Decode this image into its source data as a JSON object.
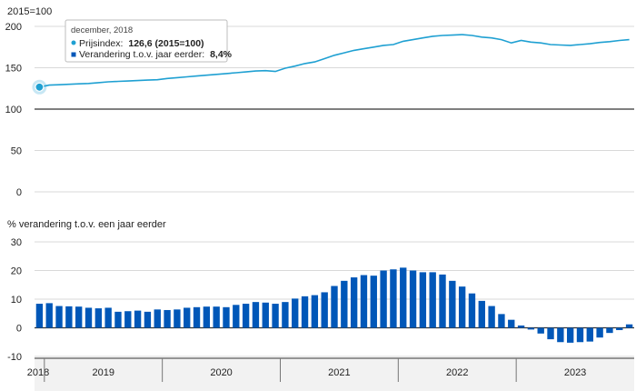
{
  "chart_data": [
    {
      "type": "line",
      "title": "2015=100",
      "yticks": [
        0,
        50,
        100,
        150,
        200
      ],
      "ylim": [
        0,
        200
      ],
      "baseline": 100,
      "grid": true,
      "series": [
        {
          "name": "Prijsindex",
          "color": "#1fa0d2",
          "x": [
            "2018-12",
            "2019-01",
            "2019-02",
            "2019-03",
            "2019-04",
            "2019-05",
            "2019-06",
            "2019-07",
            "2019-08",
            "2019-09",
            "2019-10",
            "2019-11",
            "2019-12",
            "2020-01",
            "2020-02",
            "2020-03",
            "2020-04",
            "2020-05",
            "2020-06",
            "2020-07",
            "2020-08",
            "2020-09",
            "2020-10",
            "2020-11",
            "2020-12",
            "2021-01",
            "2021-02",
            "2021-03",
            "2021-04",
            "2021-05",
            "2021-06",
            "2021-07",
            "2021-08",
            "2021-09",
            "2021-10",
            "2021-11",
            "2021-12",
            "2022-01",
            "2022-02",
            "2022-03",
            "2022-04",
            "2022-05",
            "2022-06",
            "2022-07",
            "2022-08",
            "2022-09",
            "2022-10",
            "2022-11",
            "2022-12",
            "2023-01",
            "2023-02",
            "2023-03",
            "2023-04",
            "2023-05",
            "2023-06",
            "2023-07",
            "2023-08",
            "2023-09",
            "2023-10",
            "2023-11",
            "2023-12"
          ],
          "values": [
            126.6,
            129,
            129.5,
            130,
            130.5,
            131,
            132,
            133,
            133.5,
            134,
            134.5,
            135,
            135.5,
            137,
            138,
            139,
            140,
            141,
            142,
            143,
            144,
            145,
            146,
            146.5,
            145.5,
            149.5,
            152,
            155,
            157,
            161,
            165,
            168,
            171,
            173,
            175,
            177,
            178,
            182,
            184,
            186,
            188,
            189,
            189.5,
            190,
            189,
            187,
            186,
            184,
            180,
            183,
            181,
            180,
            178,
            177.5,
            177,
            178,
            179,
            180.5,
            181.5,
            183,
            184
          ]
        }
      ],
      "tooltip": {
        "title": "december, 2018",
        "line1_label": "Prijsindex:",
        "line1_value": "126,6 (2015=100)",
        "line2_label": "Verandering t.o.v. jaar eerder:",
        "line2_value": "8,4%"
      }
    },
    {
      "type": "bar",
      "title": "% verandering t.o.v. een jaar eerder",
      "yticks": [
        -10,
        0,
        10,
        20,
        30
      ],
      "ylim": [
        -10,
        30
      ],
      "grid": true,
      "series": [
        {
          "name": "Verandering t.o.v. jaar eerder",
          "color": "#0057b8",
          "x": [
            "2018-12",
            "2019-01",
            "2019-02",
            "2019-03",
            "2019-04",
            "2019-05",
            "2019-06",
            "2019-07",
            "2019-08",
            "2019-09",
            "2019-10",
            "2019-11",
            "2019-12",
            "2020-01",
            "2020-02",
            "2020-03",
            "2020-04",
            "2020-05",
            "2020-06",
            "2020-07",
            "2020-08",
            "2020-09",
            "2020-10",
            "2020-11",
            "2020-12",
            "2021-01",
            "2021-02",
            "2021-03",
            "2021-04",
            "2021-05",
            "2021-06",
            "2021-07",
            "2021-08",
            "2021-09",
            "2021-10",
            "2021-11",
            "2021-12",
            "2022-01",
            "2022-02",
            "2022-03",
            "2022-04",
            "2022-05",
            "2022-06",
            "2022-07",
            "2022-08",
            "2022-09",
            "2022-10",
            "2022-11",
            "2022-12",
            "2023-01",
            "2023-02",
            "2023-03",
            "2023-04",
            "2023-05",
            "2023-06",
            "2023-07",
            "2023-08",
            "2023-09",
            "2023-10",
            "2023-11",
            "2023-12"
          ],
          "values": [
            8.4,
            8.6,
            7.6,
            7.5,
            7.4,
            7.0,
            6.8,
            7.0,
            5.6,
            5.8,
            6.0,
            5.6,
            6.4,
            6.2,
            6.4,
            7.0,
            7.2,
            7.4,
            7.4,
            7.2,
            8.0,
            8.4,
            9.0,
            8.8,
            8.4,
            9.0,
            10.2,
            11.0,
            11.4,
            12.4,
            14.6,
            16.4,
            17.6,
            18.4,
            18.2,
            20.0,
            20.4,
            21.0,
            20.0,
            19.4,
            19.4,
            18.6,
            16.4,
            14.4,
            12.0,
            9.4,
            7.6,
            4.8,
            2.8,
            0.8,
            -0.6,
            -2.0,
            -4.0,
            -5.0,
            -5.2,
            -5.0,
            -4.8,
            -3.4,
            -1.8,
            -0.8,
            1.2
          ]
        }
      ]
    }
  ],
  "x_axis": {
    "years": [
      "2018",
      "2019",
      "2020",
      "2021",
      "2022",
      "2023"
    ]
  }
}
